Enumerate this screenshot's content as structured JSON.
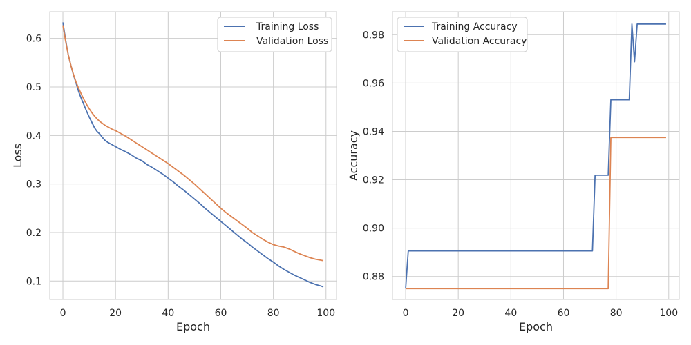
{
  "colors": {
    "training": "#4C72B0",
    "validation": "#DD8452",
    "grid": "#cccccc",
    "text": "#262626"
  },
  "chart_data": [
    {
      "type": "line",
      "title": "",
      "xlabel": "Epoch",
      "ylabel": "Loss",
      "xlim": [
        -5,
        104
      ],
      "ylim": [
        0.062,
        0.655
      ],
      "xticks": [
        0,
        20,
        40,
        60,
        80,
        100
      ],
      "yticks": [
        0.1,
        0.2,
        0.3,
        0.4,
        0.5,
        0.6
      ],
      "ytick_labels": [
        "0.1",
        "0.2",
        "0.3",
        "0.4",
        "0.5",
        "0.6"
      ],
      "grid": true,
      "legend_position": "top-right",
      "series": [
        {
          "name": "Training Loss",
          "color": "#4C72B0",
          "x": [
            0,
            1,
            2,
            3,
            4,
            5,
            6,
            7,
            8,
            9,
            10,
            11,
            12,
            13,
            14,
            15,
            16,
            17,
            18,
            19,
            20,
            22,
            24,
            26,
            28,
            30,
            32,
            34,
            36,
            38,
            40,
            42,
            44,
            46,
            48,
            50,
            52,
            54,
            56,
            58,
            60,
            62,
            64,
            66,
            68,
            70,
            72,
            74,
            76,
            78,
            80,
            82,
            84,
            86,
            88,
            90,
            92,
            94,
            96,
            98,
            99
          ],
          "values": [
            0.633,
            0.598,
            0.567,
            0.545,
            0.525,
            0.508,
            0.49,
            0.476,
            0.463,
            0.45,
            0.438,
            0.427,
            0.416,
            0.408,
            0.403,
            0.396,
            0.39,
            0.386,
            0.383,
            0.38,
            0.377,
            0.371,
            0.366,
            0.36,
            0.353,
            0.348,
            0.34,
            0.334,
            0.327,
            0.32,
            0.312,
            0.304,
            0.295,
            0.287,
            0.278,
            0.269,
            0.26,
            0.25,
            0.241,
            0.232,
            0.223,
            0.214,
            0.205,
            0.196,
            0.187,
            0.179,
            0.17,
            0.162,
            0.154,
            0.146,
            0.139,
            0.131,
            0.124,
            0.118,
            0.112,
            0.107,
            0.102,
            0.097,
            0.093,
            0.09,
            0.088
          ]
        },
        {
          "name": "Validation Loss",
          "color": "#DD8452",
          "x": [
            0,
            1,
            2,
            3,
            4,
            5,
            6,
            7,
            8,
            9,
            10,
            11,
            12,
            13,
            14,
            15,
            16,
            17,
            18,
            19,
            20,
            22,
            24,
            26,
            28,
            30,
            32,
            34,
            36,
            38,
            40,
            42,
            44,
            46,
            48,
            50,
            52,
            54,
            56,
            58,
            60,
            62,
            64,
            66,
            68,
            70,
            72,
            74,
            76,
            78,
            80,
            82,
            84,
            86,
            88,
            90,
            92,
            94,
            96,
            98,
            99
          ],
          "values": [
            0.627,
            0.595,
            0.567,
            0.545,
            0.526,
            0.51,
            0.497,
            0.485,
            0.474,
            0.464,
            0.455,
            0.447,
            0.44,
            0.434,
            0.429,
            0.425,
            0.421,
            0.418,
            0.415,
            0.412,
            0.41,
            0.404,
            0.398,
            0.391,
            0.384,
            0.377,
            0.37,
            0.363,
            0.356,
            0.349,
            0.342,
            0.334,
            0.326,
            0.318,
            0.309,
            0.3,
            0.29,
            0.28,
            0.27,
            0.26,
            0.25,
            0.241,
            0.233,
            0.225,
            0.217,
            0.209,
            0.2,
            0.193,
            0.186,
            0.18,
            0.175,
            0.172,
            0.17,
            0.166,
            0.161,
            0.156,
            0.152,
            0.148,
            0.145,
            0.143,
            0.142
          ]
        }
      ]
    },
    {
      "type": "line",
      "title": "",
      "xlabel": "Epoch",
      "ylabel": "Accuracy",
      "xlim": [
        -5,
        104
      ],
      "ylim": [
        0.8705,
        0.9895
      ],
      "xticks": [
        0,
        20,
        40,
        60,
        80,
        100
      ],
      "yticks": [
        0.88,
        0.9,
        0.92,
        0.94,
        0.96,
        0.98
      ],
      "ytick_labels": [
        "0.88",
        "0.90",
        "0.92",
        "0.94",
        "0.96",
        "0.98"
      ],
      "grid": true,
      "legend_position": "top-left",
      "series": [
        {
          "name": "Training Accuracy",
          "color": "#4C72B0",
          "x": [
            0,
            1,
            70,
            71,
            72,
            76,
            77,
            78,
            84,
            85,
            86,
            87,
            88,
            99
          ],
          "values": [
            0.875,
            0.8906,
            0.8906,
            0.8906,
            0.9219,
            0.9219,
            0.9219,
            0.9531,
            0.9531,
            0.9531,
            0.9844,
            0.9688,
            0.9844,
            0.9844
          ]
        },
        {
          "name": "Validation Accuracy",
          "color": "#DD8452",
          "x": [
            0,
            77,
            78,
            99
          ],
          "values": [
            0.875,
            0.875,
            0.9375,
            0.9375
          ]
        }
      ]
    }
  ]
}
